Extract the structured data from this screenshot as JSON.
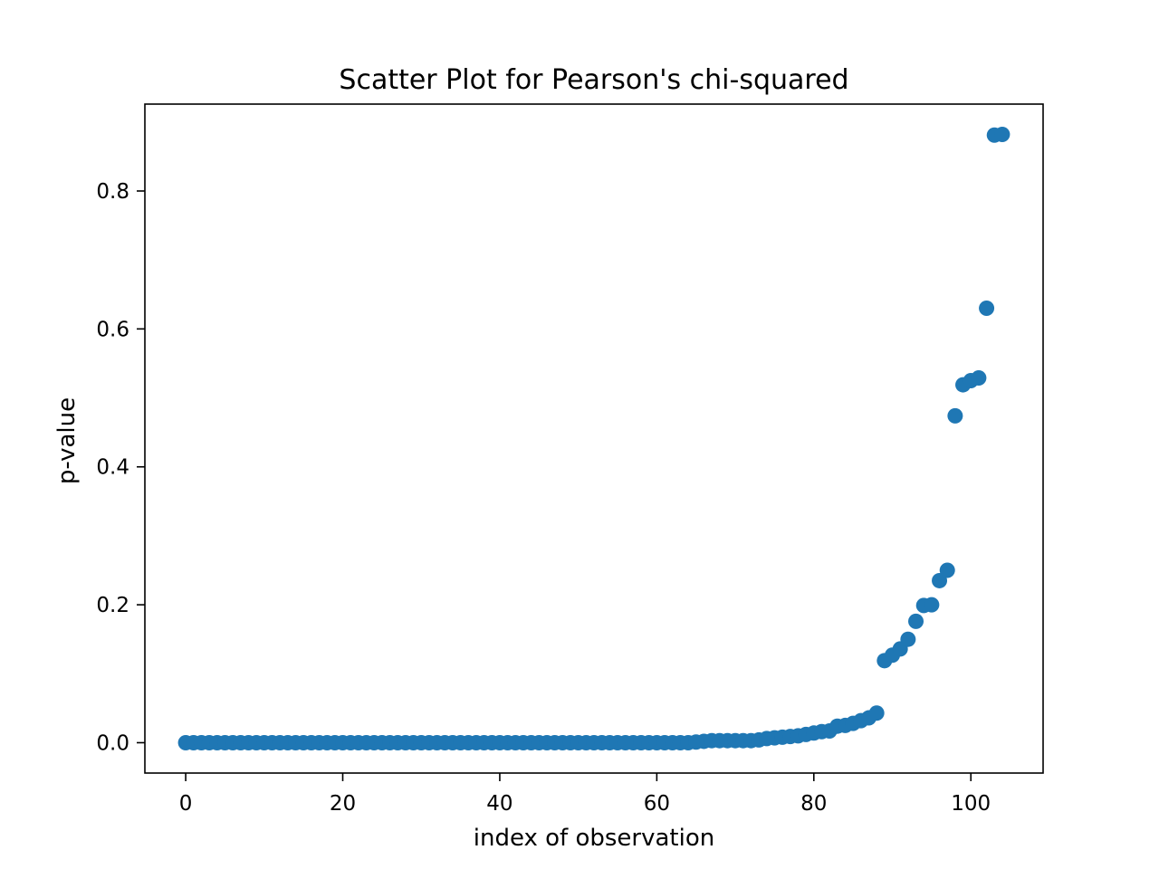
{
  "chart_data": {
    "type": "scatter",
    "title": "Scatter Plot for Pearson's chi-squared",
    "xlabel": "index of observation",
    "ylabel": "p-value",
    "xlim": [
      -5.2,
      109.2
    ],
    "ylim": [
      -0.044,
      0.926
    ],
    "xticks": [
      0,
      20,
      40,
      60,
      80,
      100
    ],
    "yticks": [
      0.0,
      0.2,
      0.4,
      0.6,
      0.8
    ],
    "xtick_labels": [
      "0",
      "20",
      "40",
      "60",
      "80",
      "100"
    ],
    "ytick_labels": [
      "0.0",
      "0.2",
      "0.4",
      "0.6",
      "0.8"
    ],
    "grid": false,
    "marker_color": "#1f77b4",
    "x": [
      0,
      1,
      2,
      3,
      4,
      5,
      6,
      7,
      8,
      9,
      10,
      11,
      12,
      13,
      14,
      15,
      16,
      17,
      18,
      19,
      20,
      21,
      22,
      23,
      24,
      25,
      26,
      27,
      28,
      29,
      30,
      31,
      32,
      33,
      34,
      35,
      36,
      37,
      38,
      39,
      40,
      41,
      42,
      43,
      44,
      45,
      46,
      47,
      48,
      49,
      50,
      51,
      52,
      53,
      54,
      55,
      56,
      57,
      58,
      59,
      60,
      61,
      62,
      63,
      64,
      65,
      66,
      67,
      68,
      69,
      70,
      71,
      72,
      73,
      74,
      75,
      76,
      77,
      78,
      79,
      80,
      81,
      82,
      83,
      84,
      85,
      86,
      87,
      88,
      89,
      90,
      91,
      92,
      93,
      94,
      95,
      96,
      97,
      98,
      99,
      100,
      101,
      102,
      103,
      104
    ],
    "y": [
      0.0,
      0.0,
      0.0,
      0.0,
      0.0,
      0.0,
      0.0,
      0.0,
      0.0,
      0.0,
      0.0,
      0.0,
      0.0,
      0.0,
      0.0,
      0.0,
      0.0,
      0.0,
      0.0,
      0.0,
      0.0,
      0.0,
      0.0,
      0.0,
      0.0,
      0.0,
      0.0,
      0.0,
      0.0,
      0.0,
      0.0,
      0.0,
      0.0,
      0.0,
      0.0,
      0.0,
      0.0,
      0.0,
      0.0,
      0.0,
      0.0,
      0.0,
      0.0,
      0.0,
      0.0,
      0.0,
      0.0,
      0.0,
      0.0,
      0.0,
      0.0,
      0.0,
      0.0,
      0.0,
      0.0,
      0.0,
      0.0,
      0.0,
      0.0,
      0.0,
      0.0,
      0.0,
      0.0,
      0.0,
      0.0,
      0.001,
      0.002,
      0.003,
      0.003,
      0.003,
      0.003,
      0.003,
      0.003,
      0.004,
      0.006,
      0.007,
      0.008,
      0.009,
      0.01,
      0.012,
      0.014,
      0.016,
      0.017,
      0.024,
      0.025,
      0.028,
      0.032,
      0.036,
      0.043,
      0.119,
      0.127,
      0.136,
      0.15,
      0.176,
      0.199,
      0.2,
      0.235,
      0.25,
      0.474,
      0.519,
      0.525,
      0.529,
      0.63,
      0.881,
      0.882
    ]
  }
}
